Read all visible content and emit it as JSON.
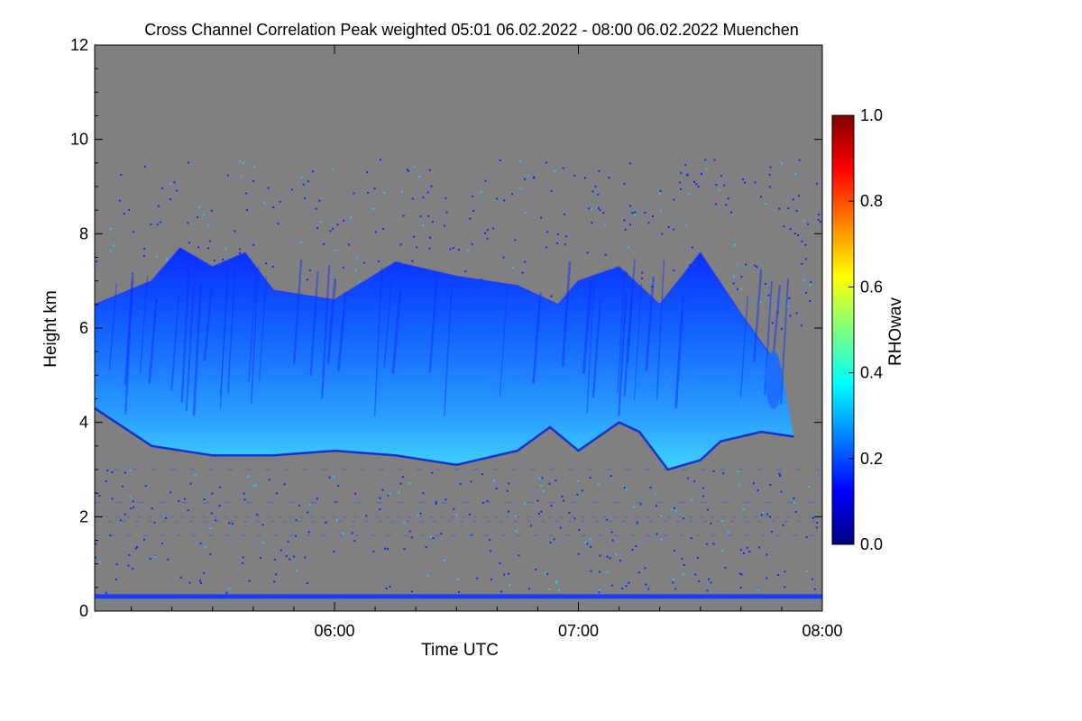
{
  "chart_data": {
    "type": "heatmap",
    "title": "Cross Channel Correlation Peak weighted   05:01 06.02.2022 - 08:00 06.02.2022 Muenchen",
    "xlabel": "Time UTC",
    "ylabel": "Height km",
    "colorbar_label": "RHOwav",
    "xlim": [
      "05:01",
      "08:00"
    ],
    "ylim": [
      0,
      12
    ],
    "clim": [
      0.0,
      1.0
    ],
    "x_ticks": [
      "06:00",
      "07:00",
      "08:00"
    ],
    "y_ticks": [
      "0",
      "2",
      "4",
      "6",
      "8",
      "10",
      "12"
    ],
    "colorbar_ticks": [
      "0.0",
      "0.2",
      "0.4",
      "0.6",
      "0.8",
      "1.0"
    ],
    "colormap": [
      "#000080",
      "#0000ff",
      "#0080ff",
      "#00ffff",
      "#80ff80",
      "#ffff00",
      "#ff8000",
      "#ff0000",
      "#800000"
    ],
    "background_color": "#808080",
    "cloud_base_km": [
      {
        "x": "05:01",
        "y": 4.3
      },
      {
        "x": "05:15",
        "y": 3.5
      },
      {
        "x": "05:30",
        "y": 3.3
      },
      {
        "x": "05:45",
        "y": 3.3
      },
      {
        "x": "06:00",
        "y": 3.4
      },
      {
        "x": "06:15",
        "y": 3.3
      },
      {
        "x": "06:30",
        "y": 3.1
      },
      {
        "x": "06:45",
        "y": 3.4
      },
      {
        "x": "06:53",
        "y": 3.9
      },
      {
        "x": "07:00",
        "y": 3.4
      },
      {
        "x": "07:10",
        "y": 4.0
      },
      {
        "x": "07:15",
        "y": 3.8
      },
      {
        "x": "07:22",
        "y": 3.0
      },
      {
        "x": "07:30",
        "y": 3.2
      },
      {
        "x": "07:35",
        "y": 3.6
      },
      {
        "x": "07:45",
        "y": 3.8
      },
      {
        "x": "07:53",
        "y": 3.7
      }
    ],
    "cloud_top_km": [
      {
        "x": "05:01",
        "y": 6.5
      },
      {
        "x": "05:15",
        "y": 7.0
      },
      {
        "x": "05:22",
        "y": 7.7
      },
      {
        "x": "05:30",
        "y": 7.3
      },
      {
        "x": "05:38",
        "y": 7.6
      },
      {
        "x": "05:45",
        "y": 6.8
      },
      {
        "x": "06:00",
        "y": 6.6
      },
      {
        "x": "06:15",
        "y": 7.4
      },
      {
        "x": "06:30",
        "y": 7.1
      },
      {
        "x": "06:45",
        "y": 6.9
      },
      {
        "x": "06:55",
        "y": 6.5
      },
      {
        "x": "07:00",
        "y": 7.0
      },
      {
        "x": "07:10",
        "y": 7.3
      },
      {
        "x": "07:20",
        "y": 6.5
      },
      {
        "x": "07:30",
        "y": 7.6
      },
      {
        "x": "07:40",
        "y": 6.3
      },
      {
        "x": "07:50",
        "y": 5.1
      }
    ],
    "core_rho_max": 0.38,
    "surface_layer_km": 0.3,
    "grid": false
  }
}
